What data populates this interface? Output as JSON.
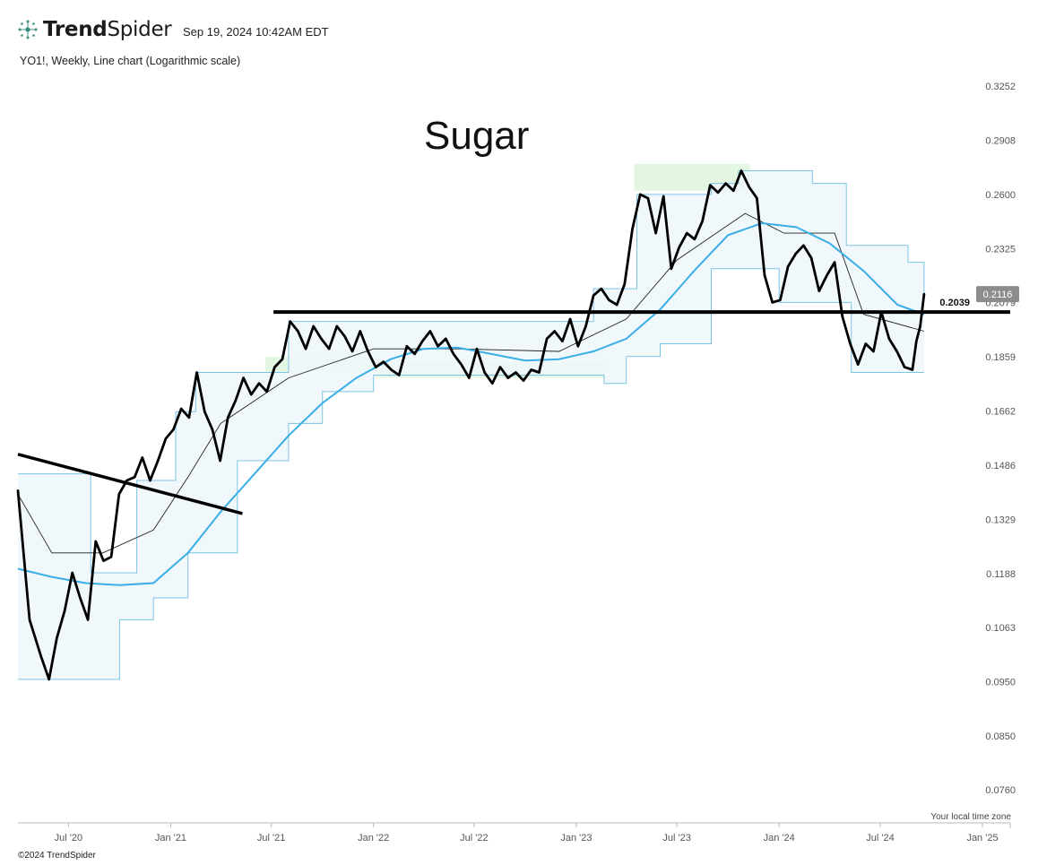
{
  "header": {
    "brand_bold": "Trend",
    "brand_light": "Spider",
    "timestamp": "Sep 19, 2024 10:42AM EDT",
    "symbol_info": "YO1!, Weekly, Line chart (Logarithmic scale)"
  },
  "footer": {
    "timezone_note": "Your local time zone",
    "copyright": "©2024 TrendSpider"
  },
  "colors": {
    "price": "#000000",
    "moving_average": "#3aaee6",
    "band": "#7cc4e4",
    "band_fill": "#eef7fc",
    "highlight": "#e3f7e3",
    "annotation": "#000000",
    "last_price_badge": "#8c8c8c"
  },
  "chart_data": {
    "type": "line",
    "title": "Sugar",
    "scale": "log",
    "xlim": [
      "2020-04-01",
      "2025-02-20"
    ],
    "ylim": [
      0.071,
      0.335
    ],
    "y_ticks": [
      0.3252,
      0.2908,
      0.26,
      0.2325,
      0.2079,
      0.1859,
      0.1662,
      0.1486,
      0.1329,
      0.1188,
      0.1063,
      0.095,
      0.085,
      0.076
    ],
    "y_tick_labels": [
      "0.3252",
      "0.2908",
      "0.2600",
      "0.2325",
      "0.2079",
      "0.1859",
      "0.1662",
      "0.1486",
      "0.1329",
      "0.1188",
      "0.1063",
      "0.0950",
      "0.0850",
      "0.0760"
    ],
    "x_ticks": [
      "2020-07-01",
      "2021-01-01",
      "2021-07-01",
      "2022-01-01",
      "2022-07-01",
      "2023-01-01",
      "2023-07-01",
      "2024-01-01",
      "2024-07-01",
      "2025-01-01"
    ],
    "x_tick_labels": [
      "Jul '20",
      "Jan '21",
      "Jul '21",
      "Jan '22",
      "Jul '22",
      "Jan '23",
      "Jul '23",
      "Jan '24",
      "Jul '24",
      "Jan '25"
    ],
    "grid": false,
    "last_price": 0.2116,
    "last_price_label": "0.2116",
    "series": [
      {
        "kind": "price",
        "points": [
          [
            "2020-04-01",
            0.141
          ],
          [
            "2020-04-22",
            0.108
          ],
          [
            "2020-05-13",
            0.1
          ],
          [
            "2020-05-27",
            0.0955
          ],
          [
            "2020-06-10",
            0.104
          ],
          [
            "2020-06-24",
            0.11
          ],
          [
            "2020-07-08",
            0.119
          ],
          [
            "2020-07-22",
            0.113
          ],
          [
            "2020-08-05",
            0.108
          ],
          [
            "2020-08-19",
            0.127
          ],
          [
            "2020-09-02",
            0.122
          ],
          [
            "2020-09-16",
            0.123
          ],
          [
            "2020-09-30",
            0.14
          ],
          [
            "2020-10-14",
            0.144
          ],
          [
            "2020-10-28",
            0.145
          ],
          [
            "2020-11-11",
            0.151
          ],
          [
            "2020-11-25",
            0.144
          ],
          [
            "2020-12-09",
            0.15
          ],
          [
            "2020-12-23",
            0.157
          ],
          [
            "2021-01-06",
            0.16
          ],
          [
            "2021-01-20",
            0.167
          ],
          [
            "2021-02-03",
            0.164
          ],
          [
            "2021-02-17",
            0.18
          ],
          [
            "2021-03-03",
            0.166
          ],
          [
            "2021-03-17",
            0.16
          ],
          [
            "2021-03-31",
            0.15
          ],
          [
            "2021-04-14",
            0.164
          ],
          [
            "2021-04-28",
            0.17
          ],
          [
            "2021-05-12",
            0.178
          ],
          [
            "2021-05-26",
            0.172
          ],
          [
            "2021-06-09",
            0.176
          ],
          [
            "2021-06-23",
            0.173
          ],
          [
            "2021-07-07",
            0.182
          ],
          [
            "2021-07-21",
            0.185
          ],
          [
            "2021-08-04",
            0.2
          ],
          [
            "2021-08-18",
            0.196
          ],
          [
            "2021-09-01",
            0.189
          ],
          [
            "2021-09-15",
            0.198
          ],
          [
            "2021-09-29",
            0.193
          ],
          [
            "2021-10-13",
            0.189
          ],
          [
            "2021-10-27",
            0.198
          ],
          [
            "2021-11-10",
            0.194
          ],
          [
            "2021-11-24",
            0.188
          ],
          [
            "2021-12-08",
            0.196
          ],
          [
            "2021-12-22",
            0.188
          ],
          [
            "2022-01-05",
            0.182
          ],
          [
            "2022-01-19",
            0.184
          ],
          [
            "2022-02-02",
            0.181
          ],
          [
            "2022-02-16",
            0.179
          ],
          [
            "2022-03-02",
            0.19
          ],
          [
            "2022-03-16",
            0.187
          ],
          [
            "2022-03-30",
            0.192
          ],
          [
            "2022-04-13",
            0.196
          ],
          [
            "2022-04-27",
            0.19
          ],
          [
            "2022-05-11",
            0.193
          ],
          [
            "2022-05-25",
            0.187
          ],
          [
            "2022-06-08",
            0.183
          ],
          [
            "2022-06-22",
            0.178
          ],
          [
            "2022-07-06",
            0.189
          ],
          [
            "2022-07-20",
            0.18
          ],
          [
            "2022-08-03",
            0.176
          ],
          [
            "2022-08-17",
            0.182
          ],
          [
            "2022-08-31",
            0.178
          ],
          [
            "2022-09-14",
            0.18
          ],
          [
            "2022-09-28",
            0.177
          ],
          [
            "2022-10-12",
            0.181
          ],
          [
            "2022-10-26",
            0.18
          ],
          [
            "2022-11-09",
            0.193
          ],
          [
            "2022-11-23",
            0.196
          ],
          [
            "2022-12-07",
            0.192
          ],
          [
            "2022-12-21",
            0.201
          ],
          [
            "2023-01-04",
            0.19
          ],
          [
            "2023-01-18",
            0.198
          ],
          [
            "2023-02-01",
            0.211
          ],
          [
            "2023-02-15",
            0.214
          ],
          [
            "2023-03-01",
            0.209
          ],
          [
            "2023-03-15",
            0.207
          ],
          [
            "2023-03-29",
            0.216
          ],
          [
            "2023-04-12",
            0.242
          ],
          [
            "2023-04-26",
            0.26
          ],
          [
            "2023-05-10",
            0.258
          ],
          [
            "2023-05-24",
            0.24
          ],
          [
            "2023-06-07",
            0.259
          ],
          [
            "2023-06-21",
            0.223
          ],
          [
            "2023-07-05",
            0.233
          ],
          [
            "2023-07-19",
            0.24
          ],
          [
            "2023-08-02",
            0.237
          ],
          [
            "2023-08-16",
            0.246
          ],
          [
            "2023-08-30",
            0.265
          ],
          [
            "2023-09-13",
            0.261
          ],
          [
            "2023-09-27",
            0.266
          ],
          [
            "2023-10-11",
            0.262
          ],
          [
            "2023-10-25",
            0.273
          ],
          [
            "2023-11-08",
            0.264
          ],
          [
            "2023-11-22",
            0.258
          ],
          [
            "2023-12-06",
            0.22
          ],
          [
            "2023-12-20",
            0.208
          ],
          [
            "2024-01-03",
            0.209
          ],
          [
            "2024-01-17",
            0.224
          ],
          [
            "2024-01-31",
            0.23
          ],
          [
            "2024-02-14",
            0.234
          ],
          [
            "2024-02-28",
            0.228
          ],
          [
            "2024-03-13",
            0.213
          ],
          [
            "2024-03-27",
            0.22
          ],
          [
            "2024-04-10",
            0.226
          ],
          [
            "2024-04-24",
            0.202
          ],
          [
            "2024-05-08",
            0.191
          ],
          [
            "2024-05-22",
            0.183
          ],
          [
            "2024-06-05",
            0.191
          ],
          [
            "2024-06-19",
            0.188
          ],
          [
            "2024-07-03",
            0.204
          ],
          [
            "2024-07-17",
            0.193
          ],
          [
            "2024-07-31",
            0.188
          ],
          [
            "2024-08-14",
            0.182
          ],
          [
            "2024-08-28",
            0.181
          ],
          [
            "2024-09-04",
            0.192
          ],
          [
            "2024-09-11",
            0.198
          ],
          [
            "2024-09-18",
            0.2116
          ]
        ]
      },
      {
        "kind": "moving_average",
        "points": [
          [
            "2020-04-01",
            0.12
          ],
          [
            "2020-06-01",
            0.118
          ],
          [
            "2020-08-01",
            0.1165
          ],
          [
            "2020-10-01",
            0.116
          ],
          [
            "2020-12-01",
            0.1165
          ],
          [
            "2021-02-01",
            0.124
          ],
          [
            "2021-04-01",
            0.135
          ],
          [
            "2021-06-01",
            0.146
          ],
          [
            "2021-08-01",
            0.158
          ],
          [
            "2021-10-01",
            0.169
          ],
          [
            "2021-12-01",
            0.178
          ],
          [
            "2022-02-01",
            0.185
          ],
          [
            "2022-04-01",
            0.189
          ],
          [
            "2022-06-01",
            0.1895
          ],
          [
            "2022-08-01",
            0.187
          ],
          [
            "2022-10-01",
            0.1845
          ],
          [
            "2022-12-01",
            0.185
          ],
          [
            "2023-02-01",
            0.188
          ],
          [
            "2023-04-01",
            0.193
          ],
          [
            "2023-06-01",
            0.205
          ],
          [
            "2023-08-01",
            0.222
          ],
          [
            "2023-10-01",
            0.239
          ],
          [
            "2023-12-01",
            0.245
          ],
          [
            "2024-02-01",
            0.243
          ],
          [
            "2024-04-01",
            0.235
          ],
          [
            "2024-06-01",
            0.222
          ],
          [
            "2024-08-01",
            0.207
          ],
          [
            "2024-09-18",
            0.203
          ]
        ]
      },
      {
        "kind": "band_upper",
        "points": [
          [
            "2020-04-01",
            0.146
          ],
          [
            "2020-06-20",
            0.146
          ],
          [
            "2020-08-10",
            0.119
          ],
          [
            "2020-11-01",
            0.144
          ],
          [
            "2021-01-10",
            0.166
          ],
          [
            "2021-02-15",
            0.18
          ],
          [
            "2021-06-01",
            0.18
          ],
          [
            "2021-08-01",
            0.2
          ],
          [
            "2022-12-01",
            0.2
          ],
          [
            "2023-02-01",
            0.214
          ],
          [
            "2023-04-20",
            0.26
          ],
          [
            "2023-09-01",
            0.266
          ],
          [
            "2023-10-20",
            0.273
          ],
          [
            "2024-01-20",
            0.273
          ],
          [
            "2024-03-01",
            0.266
          ],
          [
            "2024-05-01",
            0.234
          ],
          [
            "2024-08-20",
            0.226
          ],
          [
            "2024-09-18",
            0.2116
          ]
        ]
      },
      {
        "kind": "band_lower",
        "points": [
          [
            "2020-04-01",
            0.0955
          ],
          [
            "2020-09-01",
            0.0955
          ],
          [
            "2020-10-01",
            0.108
          ],
          [
            "2020-12-01",
            0.113
          ],
          [
            "2021-02-01",
            0.124
          ],
          [
            "2021-05-01",
            0.15
          ],
          [
            "2021-08-01",
            0.162
          ],
          [
            "2021-10-01",
            0.173
          ],
          [
            "2022-01-01",
            0.179
          ],
          [
            "2023-02-20",
            0.176
          ],
          [
            "2023-04-01",
            0.186
          ],
          [
            "2023-06-01",
            0.191
          ],
          [
            "2023-09-01",
            0.223
          ],
          [
            "2024-01-01",
            0.208
          ],
          [
            "2024-04-20",
            0.208
          ],
          [
            "2024-05-10",
            0.18
          ],
          [
            "2024-09-18",
            0.18
          ]
        ]
      },
      {
        "kind": "band_middle",
        "points": [
          [
            "2020-04-01",
            0.14
          ],
          [
            "2020-06-01",
            0.124
          ],
          [
            "2020-09-01",
            0.124
          ],
          [
            "2020-12-01",
            0.13
          ],
          [
            "2021-02-01",
            0.145
          ],
          [
            "2021-04-01",
            0.162
          ],
          [
            "2021-08-01",
            0.178
          ],
          [
            "2022-01-01",
            0.189
          ],
          [
            "2022-06-01",
            0.189
          ],
          [
            "2022-12-01",
            0.188
          ],
          [
            "2023-04-01",
            0.201
          ],
          [
            "2023-07-01",
            0.227
          ],
          [
            "2023-11-01",
            0.25
          ],
          [
            "2024-01-10",
            0.24
          ],
          [
            "2024-04-10",
            0.24
          ],
          [
            "2024-06-01",
            0.203
          ],
          [
            "2024-09-18",
            0.196
          ]
        ]
      }
    ],
    "trendlines": [
      {
        "kind": "horizontal",
        "value": 0.2039,
        "label": "0.2039",
        "from": "2021-07-05",
        "to": "2025-02-20"
      },
      {
        "kind": "diagonal",
        "from": [
          "2020-04-01",
          0.152
        ],
        "to": [
          "2021-05-10",
          0.1345
        ]
      }
    ],
    "highlights": [
      {
        "from": "2023-04-15",
        "to": "2023-11-10",
        "low": 0.262,
        "high": 0.277
      },
      {
        "from": "2021-06-20",
        "to": "2022-01-05",
        "low": 0.18,
        "high": 0.186
      },
      {
        "from": "2022-01-05",
        "to": "2023-02-20",
        "low": 0.178,
        "high": 0.184
      }
    ]
  }
}
